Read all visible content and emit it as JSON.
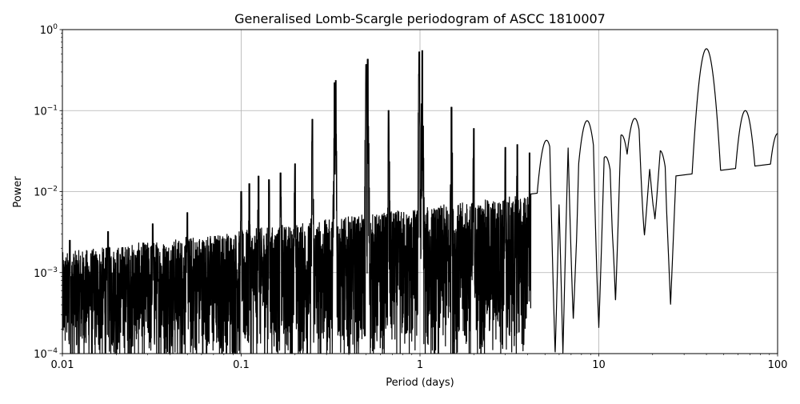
{
  "chart_data": {
    "type": "line",
    "title": "Generalised Lomb-Scargle periodogram of ASCC 1810007",
    "xlabel": "Period (days)",
    "ylabel": "Power",
    "xscale": "log",
    "yscale": "log",
    "xlim": [
      0.01,
      100
    ],
    "ylim": [
      0.0001,
      1
    ],
    "grid": true,
    "legend": "none",
    "line_color": "#000000",
    "x_ticks": [
      {
        "value": 0.01,
        "label": "0.01"
      },
      {
        "value": 0.1,
        "label": "0.1"
      },
      {
        "value": 1,
        "label": "1"
      },
      {
        "value": 10,
        "label": "10"
      },
      {
        "value": 100,
        "label": "100"
      }
    ],
    "y_ticks": [
      {
        "value": 0.0001,
        "base": "10",
        "exp": "−4"
      },
      {
        "value": 0.001,
        "base": "10",
        "exp": "−3"
      },
      {
        "value": 0.01,
        "base": "10",
        "exp": "−2"
      },
      {
        "value": 0.1,
        "base": "10",
        "exp": "−1"
      },
      {
        "value": 1,
        "base": "10",
        "exp": "0"
      }
    ],
    "peaks": [
      {
        "period": 0.011,
        "power": 0.0025
      },
      {
        "period": 0.018,
        "power": 0.0032
      },
      {
        "period": 0.032,
        "power": 0.004
      },
      {
        "period": 0.05,
        "power": 0.0055
      },
      {
        "period": 0.1,
        "power": 0.01
      },
      {
        "period": 0.111,
        "power": 0.0125
      },
      {
        "period": 0.125,
        "power": 0.0155
      },
      {
        "period": 0.143,
        "power": 0.014
      },
      {
        "period": 0.166,
        "power": 0.017
      },
      {
        "period": 0.2,
        "power": 0.022
      },
      {
        "period": 0.25,
        "power": 0.078
      },
      {
        "period": 0.333,
        "power": 0.22
      },
      {
        "period": 0.338,
        "power": 0.235
      },
      {
        "period": 0.5,
        "power": 0.37
      },
      {
        "period": 0.51,
        "power": 0.43
      },
      {
        "period": 0.667,
        "power": 0.1
      },
      {
        "period": 0.99,
        "power": 0.53
      },
      {
        "period": 1.03,
        "power": 0.55
      },
      {
        "period": 1.5,
        "power": 0.11
      },
      {
        "period": 2.0,
        "power": 0.06
      },
      {
        "period": 3.0,
        "power": 0.035
      },
      {
        "period": 3.5,
        "power": 0.038
      },
      {
        "period": 4.1,
        "power": 0.03
      },
      {
        "period": 5.1,
        "power": 0.043
      },
      {
        "period": 6.4,
        "power": 0.055
      },
      {
        "period": 7.3,
        "power": 0.0068
      },
      {
        "period": 8.6,
        "power": 0.075
      },
      {
        "period": 10.9,
        "power": 0.027
      },
      {
        "period": 13.4,
        "power": 0.05
      },
      {
        "period": 15.9,
        "power": 0.08
      },
      {
        "period": 19.0,
        "power": 0.02
      },
      {
        "period": 22.0,
        "power": 0.032
      },
      {
        "period": 28.0,
        "power": 0.0047
      },
      {
        "period": 40.0,
        "power": 0.58
      },
      {
        "period": 66.0,
        "power": 0.1
      },
      {
        "period": 100.0,
        "power": 0.052
      }
    ],
    "dips": [
      {
        "period": 5.7,
        "power": 0.0001
      },
      {
        "period": 6.3,
        "power": 0.0001
      },
      {
        "period": 7.2,
        "power": 0.00026
      },
      {
        "period": 10.0,
        "power": 0.00021
      },
      {
        "period": 12.4,
        "power": 0.00044
      },
      {
        "period": 18.0,
        "power": 0.0029
      },
      {
        "period": 20.6,
        "power": 0.0046
      },
      {
        "period": 25.2,
        "power": 0.0004
      },
      {
        "period": 53.0,
        "power": 0.035
      }
    ]
  }
}
